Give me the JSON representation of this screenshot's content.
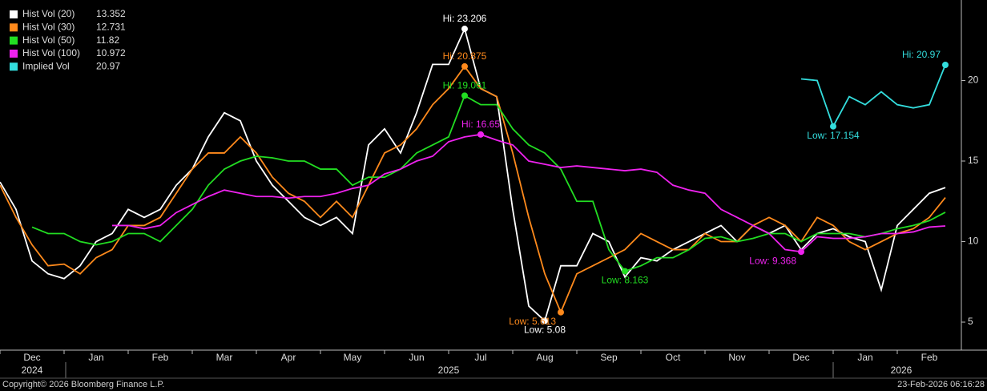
{
  "chart_data": {
    "type": "line",
    "categories": [
      null,
      null,
      "Dec",
      null,
      null,
      null,
      "Jan",
      null,
      null,
      null,
      "Feb",
      null,
      null,
      null,
      "Mar",
      null,
      null,
      null,
      "Apr",
      null,
      null,
      null,
      "May",
      null,
      null,
      null,
      "Jun",
      null,
      null,
      null,
      "Jul",
      null,
      null,
      null,
      "Aug",
      null,
      null,
      null,
      "Sep",
      null,
      null,
      null,
      "Oct",
      null,
      null,
      null,
      "Nov",
      null,
      null,
      null,
      "Dec",
      null,
      null,
      null,
      "Jan",
      null,
      null,
      null,
      "Feb",
      null
    ],
    "x_year_labels": [
      "2024",
      "2025",
      "2026"
    ],
    "ylim": [
      3.26,
      25
    ],
    "yticks": [
      5,
      10,
      15,
      20
    ],
    "series": [
      {
        "name": "Hist Vol (20)",
        "color": "#ffffff",
        "values": [
          13.7,
          12.0,
          8.8,
          8.0,
          7.7,
          8.5,
          10.0,
          10.5,
          12.0,
          11.5,
          12.0,
          13.5,
          14.5,
          16.5,
          18.0,
          17.5,
          15.0,
          13.5,
          12.5,
          11.5,
          11.0,
          11.5,
          10.5,
          16.0,
          17.0,
          15.5,
          18.0,
          21.0,
          21.0,
          23.206,
          19.5,
          19.0,
          12.0,
          6.0,
          5.08,
          8.5,
          8.5,
          10.5,
          10.0,
          7.8,
          9.0,
          8.8,
          9.5,
          10.0,
          10.5,
          11.0,
          10.0,
          11.0,
          10.5,
          11.0,
          9.5,
          10.5,
          10.8,
          10.3,
          10.0,
          7.0,
          11.0,
          12.0,
          13.0,
          13.352
        ],
        "annotations": [
          {
            "label": "Hi: 23.206",
            "value": 23.206
          },
          {
            "label": "Low: 5.08",
            "value": 5.08
          }
        ]
      },
      {
        "name": "Hist Vol (30)",
        "color": "#ff8a1c",
        "values": [
          13.5,
          11.5,
          9.8,
          8.5,
          8.6,
          8.0,
          9.0,
          9.5,
          11.0,
          11.0,
          11.5,
          13.0,
          14.5,
          15.5,
          15.5,
          16.5,
          15.5,
          14.0,
          13.0,
          12.5,
          11.5,
          12.5,
          11.5,
          13.5,
          15.5,
          16.0,
          17.0,
          18.5,
          19.5,
          20.875,
          19.5,
          19.0,
          15.5,
          11.5,
          8.0,
          5.613,
          8.0,
          8.5,
          9.0,
          9.5,
          10.5,
          10.0,
          9.5,
          9.5,
          10.5,
          10.0,
          10.0,
          11.0,
          11.5,
          11.0,
          10.0,
          11.5,
          11.0,
          10.0,
          9.5,
          10.0,
          10.5,
          10.8,
          11.5,
          12.731
        ],
        "annotations": [
          {
            "label": "Hi: 20.875",
            "value": 20.875
          },
          {
            "label": "Low: 5.613",
            "value": 5.613
          }
        ]
      },
      {
        "name": "Hist Vol (50)",
        "color": "#22dd22",
        "values": [
          null,
          null,
          10.9,
          10.5,
          10.5,
          10.0,
          9.8,
          10.0,
          10.5,
          10.5,
          10.0,
          11.0,
          12.0,
          13.5,
          14.5,
          15.0,
          15.3,
          15.2,
          15.0,
          15.0,
          14.5,
          14.5,
          13.5,
          14.0,
          14.0,
          14.5,
          15.5,
          16.0,
          16.5,
          19.061,
          18.5,
          18.5,
          17.0,
          16.0,
          15.5,
          14.5,
          12.5,
          12.5,
          9.5,
          8.163,
          8.5,
          9.0,
          9.0,
          9.5,
          10.2,
          10.3,
          10.0,
          10.2,
          10.5,
          10.5,
          10.0,
          10.5,
          10.5,
          10.5,
          10.3,
          10.5,
          10.8,
          11.0,
          11.3,
          11.82
        ],
        "annotations": [
          {
            "label": "Hi: 19.061",
            "value": 19.061
          },
          {
            "label": "Low: 8.163",
            "value": 8.163
          }
        ]
      },
      {
        "name": "Hist Vol (100)",
        "color": "#ee22ee",
        "values": [
          null,
          null,
          null,
          null,
          null,
          null,
          null,
          11.0,
          11.0,
          10.8,
          11.0,
          11.8,
          12.3,
          12.8,
          13.2,
          13.0,
          12.8,
          12.8,
          12.7,
          12.8,
          12.8,
          13.0,
          13.3,
          13.5,
          14.2,
          14.5,
          15.0,
          15.3,
          16.2,
          16.5,
          16.65,
          16.3,
          16.0,
          15.0,
          14.8,
          14.6,
          14.7,
          14.6,
          14.5,
          14.4,
          14.5,
          14.3,
          13.5,
          13.2,
          13.0,
          12.0,
          11.5,
          11.0,
          10.5,
          9.5,
          9.368,
          10.3,
          10.2,
          10.2,
          10.3,
          10.5,
          10.5,
          10.6,
          10.9,
          10.972
        ],
        "annotations": [
          {
            "label": "Hi: 16.65",
            "value": 16.65
          },
          {
            "label": "Low: 9.368",
            "value": 9.368
          }
        ]
      },
      {
        "name": "Implied Vol",
        "color": "#33dddd",
        "values": [
          null,
          null,
          null,
          null,
          null,
          null,
          null,
          null,
          null,
          null,
          null,
          null,
          null,
          null,
          null,
          null,
          null,
          null,
          null,
          null,
          null,
          null,
          null,
          null,
          null,
          null,
          null,
          null,
          null,
          null,
          null,
          null,
          null,
          null,
          null,
          null,
          null,
          null,
          null,
          null,
          null,
          null,
          null,
          null,
          null,
          null,
          null,
          null,
          null,
          null,
          20.1,
          20.0,
          17.154,
          19.0,
          18.5,
          19.3,
          18.5,
          18.3,
          18.5,
          20.97
        ],
        "annotations": [
          {
            "label": "Hi: 20.97",
            "value": 20.97
          },
          {
            "label": "Low: 17.154",
            "value": 17.154
          }
        ]
      }
    ]
  },
  "footer": {
    "copyright": "Copyright© 2026 Bloomberg Finance L.P.",
    "timestamp": "23-Feb-2026 06:16:28"
  }
}
